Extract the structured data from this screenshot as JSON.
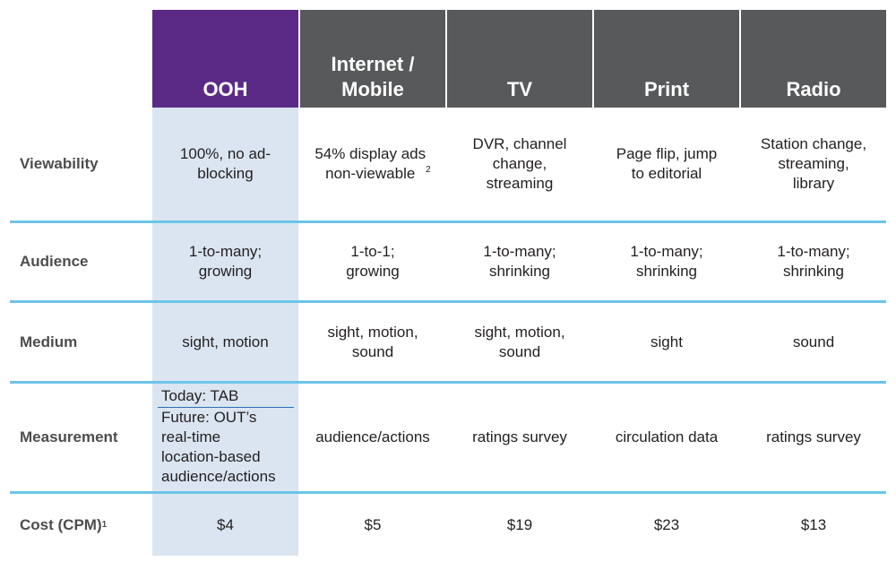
{
  "columns": [
    "OOH",
    "Internet /\nMobile",
    "TV",
    "Print",
    "Radio"
  ],
  "rows": [
    {
      "label": "Viewability",
      "cells": [
        "100%, no ad-\nblocking",
        "54% display ads\nnon-viewable",
        "DVR, channel\nchange,\nstreaming",
        "Page flip, jump\nto editorial",
        "Station change,\nstreaming,\nlibrary"
      ]
    },
    {
      "label": "Audience",
      "cells": [
        "1-to-many;\ngrowing",
        "1-to-1;\ngrowing",
        "1-to-many;\nshrinking",
        "1-to-many;\nshrinking",
        "1-to-many;\nshrinking"
      ]
    },
    {
      "label": "Medium",
      "cells": [
        "sight, motion",
        "sight, motion,\nsound",
        "sight, motion,\nsound",
        "sight",
        "sound"
      ]
    },
    {
      "label": "Measurement",
      "cells": [
        "",
        "audience/actions",
        "ratings survey",
        "circulation data",
        "ratings survey"
      ]
    },
    {
      "label": "Cost (CPM)",
      "cells": [
        "$4",
        "$5",
        "$19",
        "$23",
        "$13"
      ]
    }
  ],
  "measurement_ooh": {
    "today": "Today: TAB",
    "future": "Future: OUT’s\nreal-time\nlocation-based\naudience/actions"
  },
  "footnotes": {
    "viewability_internet": "2",
    "cost_label": "1"
  },
  "colors": {
    "header_dark": "#58595b",
    "header_ooh": "#5b2a86",
    "ooh_column": "#dae5f1",
    "row_rule": "#6cc4e8"
  }
}
